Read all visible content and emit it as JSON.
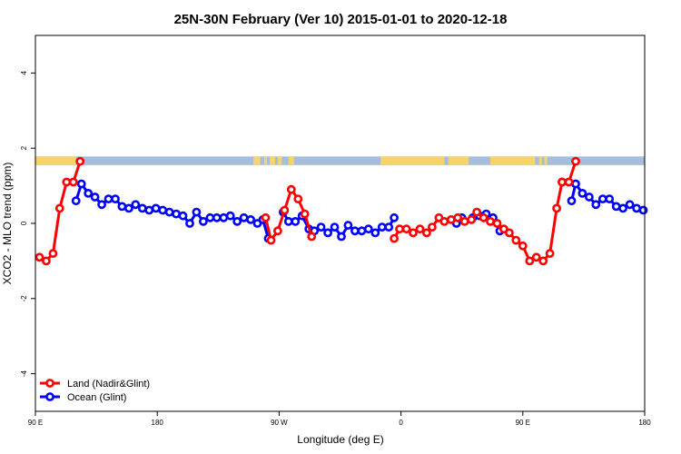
{
  "chart_data": {
    "type": "line",
    "title": "25N-30N February (Ver 10)   2015-01-01 to 2020-12-18",
    "xlabel": "Longitude (deg E)",
    "ylabel": "XCO2 - MLO trend (ppm)",
    "xlim": [
      90,
      450
    ],
    "ylim": [
      -5,
      5
    ],
    "x_ticks": [
      {
        "value": 90,
        "label": "90 E"
      },
      {
        "value": 180,
        "label": "180"
      },
      {
        "value": 270,
        "label": "90 W"
      },
      {
        "value": 360,
        "label": "0"
      },
      {
        "value": 450,
        "label": "90 E"
      },
      {
        "value": 540,
        "label": "180"
      }
    ],
    "y_ticks": [
      {
        "value": 4,
        "label": "4"
      },
      {
        "value": 2,
        "label": "2"
      },
      {
        "value": 0,
        "label": "0"
      },
      {
        "value": -2,
        "label": "-2"
      },
      {
        "value": -4,
        "label": "-4"
      }
    ],
    "land_sea_strip": {
      "y_range": [
        1.55,
        1.78
      ],
      "land_color": "#f6d36b",
      "ocean_color": "#a6bedb",
      "land_intervals": [
        [
          90,
          120
        ],
        [
          251,
          256
        ],
        [
          259,
          261
        ],
        [
          263,
          267
        ],
        [
          269,
          272
        ],
        [
          277,
          278
        ],
        [
          278,
          281
        ],
        [
          345,
          392
        ],
        [
          395,
          410
        ],
        [
          426,
          459
        ],
        [
          462,
          464
        ],
        [
          466,
          468
        ]
      ]
    },
    "legend": {
      "position": "bottom-left"
    },
    "series": [
      {
        "name": "Land (Nadir&Glint)",
        "color": "#ff0000",
        "segments": [
          {
            "x": [
              93,
              98,
              103,
              108,
              113,
              118,
              123
            ],
            "y": [
              -0.9,
              -1.0,
              -0.8,
              0.4,
              1.1,
              1.1,
              1.65
            ]
          },
          {
            "x": [
              260,
              264,
              269,
              274,
              279,
              284,
              289,
              294
            ],
            "y": [
              0.15,
              -0.45,
              -0.2,
              0.35,
              0.9,
              0.65,
              0.25,
              -0.35
            ]
          },
          {
            "x": [
              355,
              359,
              364,
              369,
              374,
              379,
              383,
              388,
              392,
              397,
              402,
              407,
              412,
              416,
              421,
              426,
              431,
              436,
              440,
              445,
              450,
              455,
              460,
              465,
              470,
              475,
              479
            ],
            "y": [
              -0.4,
              -0.15,
              -0.15,
              -0.25,
              -0.15,
              -0.25,
              -0.1,
              0.15,
              0.05,
              0.1,
              0.15,
              0.05,
              0.1,
              0.3,
              0.15,
              0.05,
              0.0,
              -0.15,
              -0.25,
              -0.45,
              -0.6,
              -1.0,
              -0.9,
              -1.0,
              -0.8,
              0.4,
              1.1
            ]
          },
          {
            "x": [
              479,
              484,
              489
            ],
            "y": [
              1.1,
              1.1,
              1.65
            ]
          }
        ]
      },
      {
        "name": "Ocean (Glint)",
        "color": "#0000ff",
        "segments": [
          {
            "x": [
              120,
              124,
              129,
              134,
              139,
              144,
              149,
              154,
              159,
              164,
              169,
              174,
              179,
              184,
              189,
              194,
              199,
              204,
              209,
              214,
              219,
              224,
              229,
              234,
              239,
              244,
              249,
              254,
              258,
              262
            ],
            "y": [
              0.6,
              1.05,
              0.8,
              0.7,
              0.5,
              0.65,
              0.65,
              0.45,
              0.4,
              0.5,
              0.4,
              0.35,
              0.4,
              0.35,
              0.3,
              0.25,
              0.2,
              0.0,
              0.3,
              0.05,
              0.15,
              0.15,
              0.15,
              0.2,
              0.05,
              0.15,
              0.1,
              0.0,
              0.1,
              -0.4
            ]
          },
          {
            "x": [
              273,
              277,
              282,
              287,
              292,
              296,
              301,
              306,
              311,
              316,
              321,
              326,
              331,
              336,
              341,
              346,
              351,
              355
            ],
            "y": [
              0.3,
              0.05,
              0.05,
              0.2,
              -0.15,
              -0.2,
              -0.1,
              -0.25,
              -0.1,
              -0.35,
              -0.05,
              -0.2,
              -0.2,
              -0.15,
              -0.25,
              -0.1,
              -0.1,
              0.15
            ]
          },
          {
            "x": [
              401,
              405
            ],
            "y": [
              0.0,
              0.15
            ]
          },
          {
            "x": [
              413,
              418,
              423,
              428,
              433
            ],
            "y": [
              0.15,
              0.2,
              0.25,
              0.15,
              -0.2
            ]
          },
          {
            "x": [
              486,
              489,
              494,
              499,
              504,
              509,
              514,
              519,
              524,
              529,
              534,
              539,
              544
            ],
            "y": [
              0.6,
              1.05,
              0.8,
              0.7,
              0.5,
              0.65,
              0.65,
              0.45,
              0.4,
              0.5,
              0.4,
              0.35,
              0.4
            ]
          }
        ]
      }
    ]
  }
}
